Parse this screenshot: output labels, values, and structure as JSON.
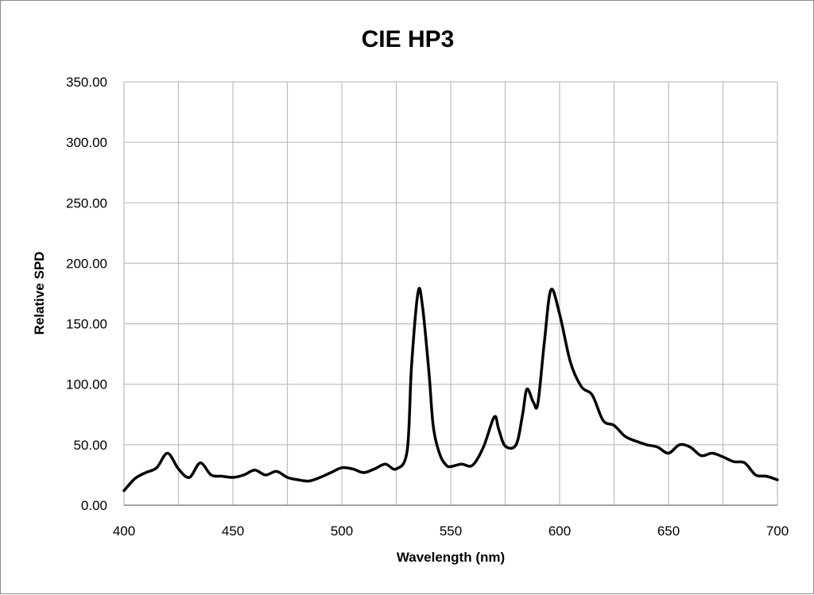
{
  "chart_data": {
    "type": "line",
    "title": "CIE HP3",
    "xlabel": "Wavelength (nm)",
    "ylabel": "Relative SPD",
    "xlim": [
      400,
      700
    ],
    "ylim": [
      0,
      350
    ],
    "xticks": [
      400,
      450,
      500,
      550,
      600,
      650,
      700
    ],
    "yticks": [
      0,
      50,
      100,
      150,
      200,
      250,
      300,
      350
    ],
    "xtick_labels": [
      "400",
      "450",
      "500",
      "550",
      "600",
      "650",
      "700"
    ],
    "ytick_labels": [
      "0.00",
      "50.00",
      "100.00",
      "150.00",
      "200.00",
      "250.00",
      "300.00",
      "350.00"
    ],
    "x_grid_step": 25,
    "grid": true,
    "legend": "none",
    "line_color": "#000000",
    "grid_color": "#c0c0c0",
    "series": [
      {
        "x": [
          400,
          405,
          410,
          415,
          420,
          425,
          430,
          435,
          440,
          445,
          450,
          455,
          460,
          465,
          470,
          475,
          480,
          485,
          490,
          495,
          500,
          505,
          510,
          515,
          520,
          525,
          530,
          532,
          535,
          537,
          540,
          542,
          545,
          548,
          550,
          555,
          560,
          565,
          570,
          572,
          575,
          580,
          583,
          585,
          588,
          590,
          593,
          596,
          600,
          605,
          610,
          615,
          620,
          625,
          630,
          635,
          640,
          645,
          650,
          655,
          660,
          665,
          670,
          675,
          680,
          685,
          690,
          695,
          700
        ],
        "y": [
          12,
          22,
          27,
          31,
          43,
          30,
          23,
          35,
          25,
          24,
          23,
          25,
          29,
          25,
          28,
          23,
          21,
          20,
          23,
          27,
          31,
          30,
          27,
          30,
          34,
          30,
          45,
          115,
          176,
          165,
          110,
          65,
          42,
          33,
          32,
          34,
          33,
          48,
          73,
          63,
          49,
          50,
          75,
          96,
          85,
          84,
          135,
          178,
          158,
          118,
          98,
          91,
          70,
          66,
          57,
          53,
          50,
          48,
          43,
          50,
          48,
          41,
          43,
          40,
          36,
          35,
          25,
          24,
          21
        ]
      }
    ]
  }
}
